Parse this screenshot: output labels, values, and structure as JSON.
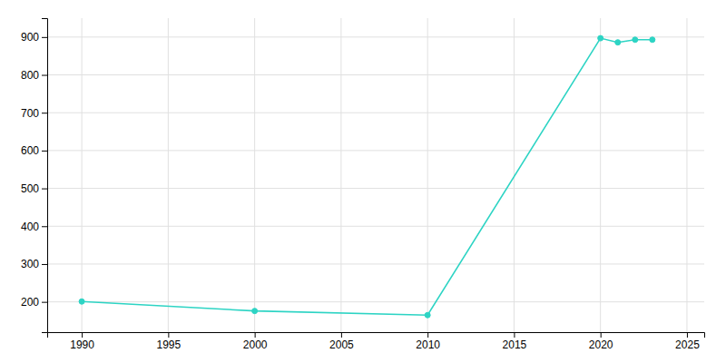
{
  "chart_data": {
    "type": "line",
    "x": [
      1990,
      2000,
      2010,
      2020,
      2021,
      2022,
      2023
    ],
    "values": [
      201,
      176,
      165,
      897,
      886,
      893,
      893
    ],
    "color": "#2dd4c4",
    "marker": "circle",
    "xlim": [
      1988,
      2026
    ],
    "ylim": [
      120,
      950
    ],
    "xticks": [
      1990,
      1995,
      2000,
      2005,
      2010,
      2015,
      2020,
      2025
    ],
    "yticks": [
      200,
      300,
      400,
      500,
      600,
      700,
      800,
      900
    ],
    "grid": true
  }
}
